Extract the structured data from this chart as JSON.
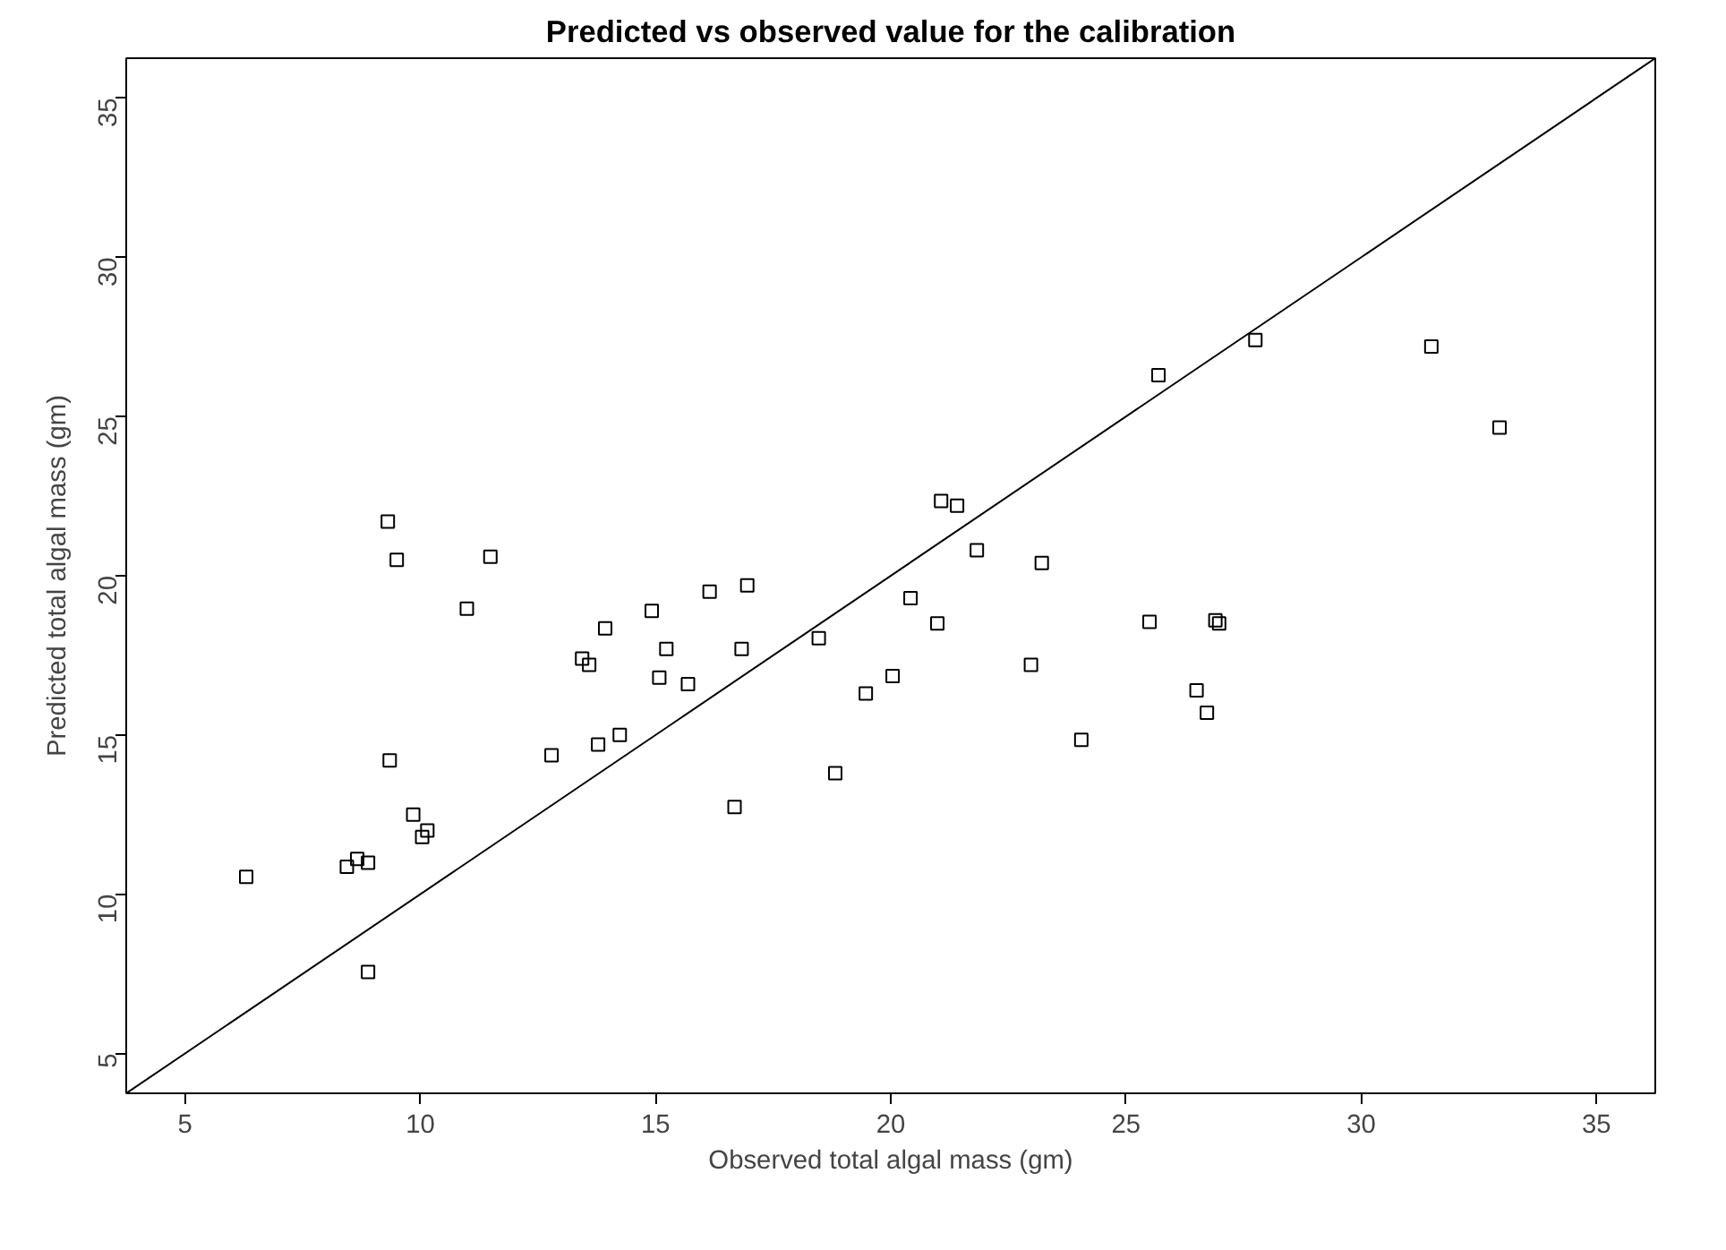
{
  "chart_data": {
    "type": "scatter",
    "title": "Predicted vs observed value for the calibration",
    "xlabel": "Observed total algal mass (gm)",
    "ylabel": "Predicted total algal mass (gm)",
    "xlim": [
      3.75,
      36.25
    ],
    "ylim": [
      3.75,
      36.25
    ],
    "xticks": [
      5,
      10,
      15,
      20,
      25,
      30,
      35
    ],
    "yticks": [
      5,
      10,
      15,
      20,
      25,
      30,
      35
    ],
    "grid": false,
    "series": [
      {
        "color": "#000000",
        "marker": "square",
        "x": [
          6.3,
          8.44,
          8.66,
          8.89,
          8.89,
          9.31,
          9.5,
          9.35,
          9.85,
          10.04,
          10.15,
          10.99,
          11.49,
          12.79,
          13.44,
          13.59,
          13.78,
          13.93,
          14.24,
          14.92,
          15.08,
          15.23,
          15.69,
          16.15,
          16.68,
          16.83,
          16.95,
          18.47,
          18.82,
          19.47,
          20.04,
          20.42,
          20.99,
          21.07,
          21.41,
          21.83,
          22.98,
          23.21,
          24.05,
          25.5,
          25.69,
          26.5,
          26.72,
          26.9,
          26.98,
          27.75,
          31.49,
          32.94
        ],
        "values": [
          10.55,
          10.86,
          11.11,
          10.99,
          7.56,
          21.7,
          20.5,
          14.2,
          12.5,
          11.8,
          12.0,
          18.97,
          20.6,
          14.36,
          17.4,
          17.2,
          14.7,
          18.35,
          15.0,
          18.9,
          16.8,
          17.7,
          16.6,
          19.5,
          12.74,
          17.7,
          19.7,
          18.04,
          13.8,
          16.3,
          16.85,
          19.3,
          18.5,
          22.35,
          22.2,
          20.8,
          17.2,
          20.4,
          14.85,
          18.55,
          26.3,
          16.4,
          15.7,
          18.6,
          18.5,
          27.4,
          27.2,
          24.65
        ]
      },
      {
        "type": "line",
        "color": "#000000",
        "line_style": "solid",
        "marker": "none",
        "x": [
          3.75,
          36.25
        ],
        "values": [
          3.75,
          36.25
        ]
      }
    ]
  }
}
